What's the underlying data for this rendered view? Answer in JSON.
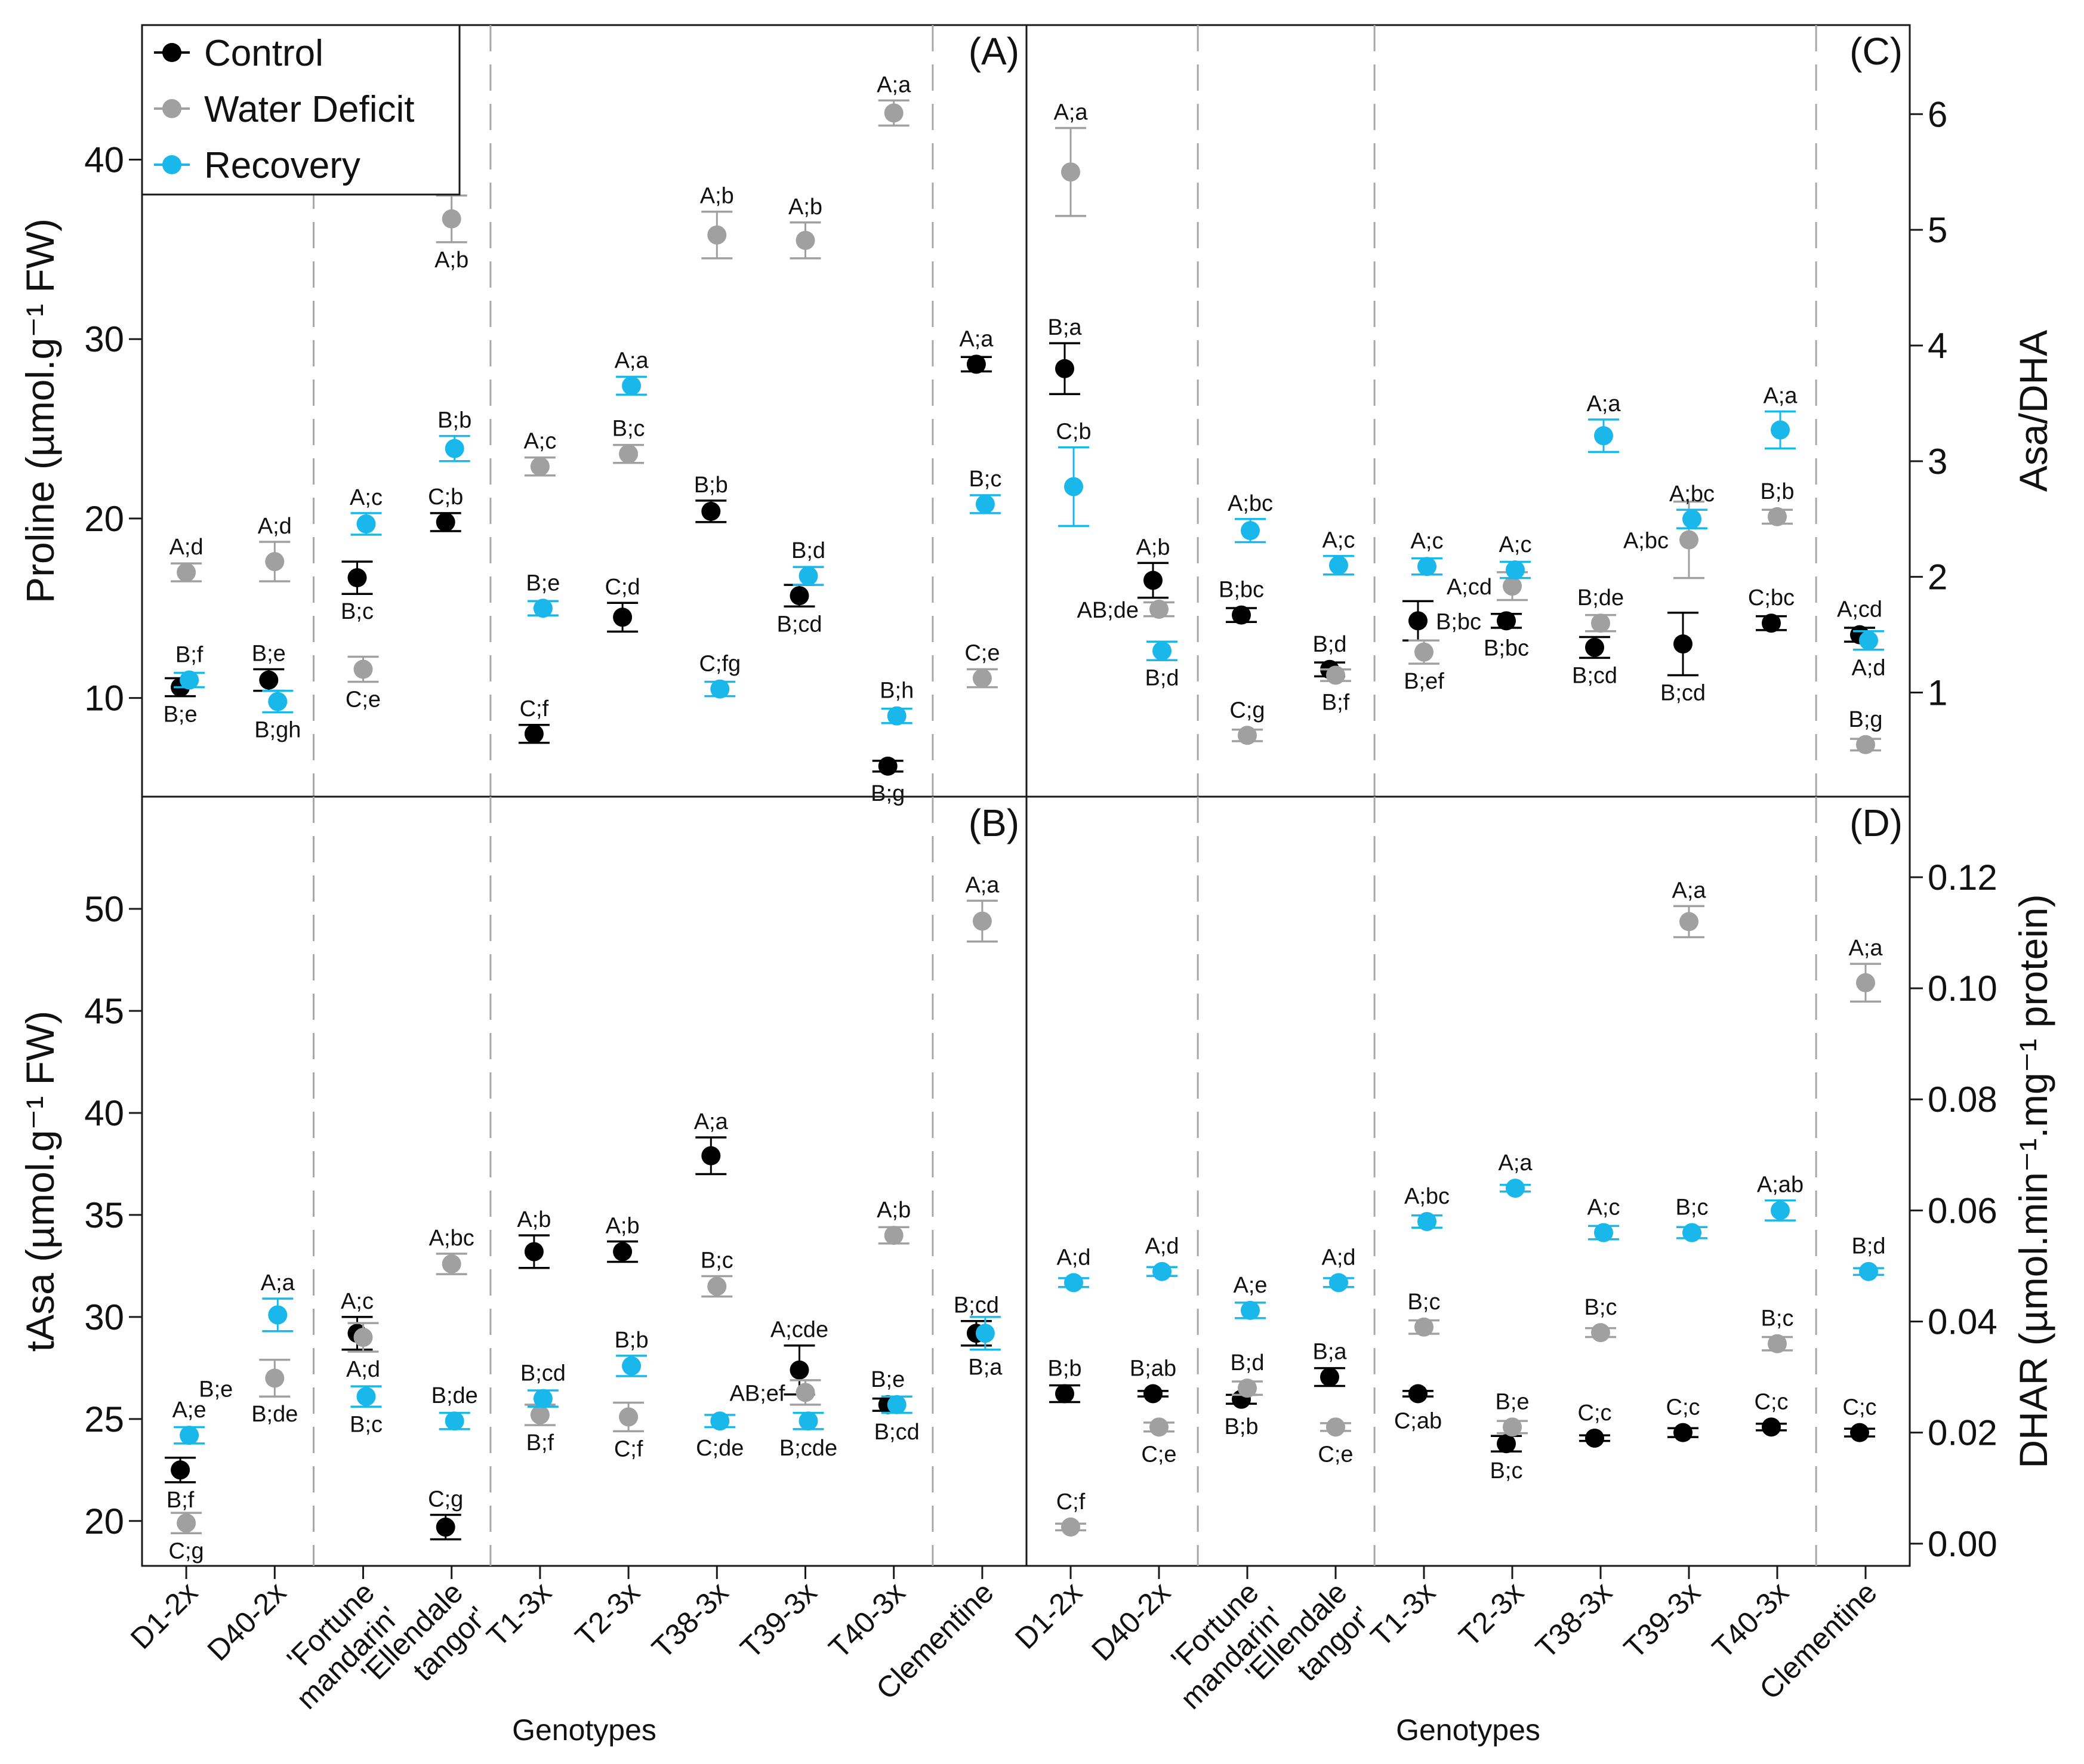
{
  "legend": [
    {
      "name": "Control",
      "color": "#000000"
    },
    {
      "name": "Water Deficit",
      "color": "#a0a0a0"
    },
    {
      "name": "Recovery",
      "color": "#1ab8ea"
    }
  ],
  "x_title": "Genotypes",
  "categories": [
    [
      "D1-2x"
    ],
    [
      "D40-2x"
    ],
    [
      "'Fortune",
      "mandarin'"
    ],
    [
      "'Ellendale",
      "tangor'"
    ],
    [
      "T1-3x"
    ],
    [
      "T2-3x"
    ],
    [
      "T38-3x"
    ],
    [
      "T39-3x"
    ],
    [
      "T40-3x"
    ],
    [
      "Clementine"
    ]
  ],
  "chart_data": [
    {
      "panel": "(A)",
      "type": "scatter",
      "ylabel": "Proline (µmol.g⁻¹ FW)",
      "yaxis_side": "left",
      "ylim": [
        4.5,
        47.5
      ],
      "yticks": [
        10,
        20,
        30,
        40
      ],
      "ytick_labels": [
        "10",
        "20",
        "30",
        "40"
      ],
      "series": [
        {
          "name": "Control",
          "values": [
            10.6,
            11.0,
            16.7,
            19.8,
            8.0,
            14.5,
            20.4,
            15.7,
            6.2,
            28.6
          ],
          "errors": [
            0.5,
            0.6,
            0.9,
            0.5,
            0.5,
            0.8,
            0.6,
            0.6,
            0.3,
            0.4
          ],
          "labels": [
            "B;e",
            "B;e",
            "B;c",
            "C;b",
            "C;f",
            "C;d",
            "B;b",
            "B;cd",
            "B;g",
            "A;a"
          ],
          "label_pos": [
            "below",
            "above",
            "below",
            "above",
            "above",
            "above",
            "above",
            "below",
            "below",
            "above"
          ]
        },
        {
          "name": "Water Deficit",
          "values": [
            17.0,
            17.6,
            11.6,
            36.7,
            22.9,
            23.6,
            35.8,
            35.5,
            42.6,
            11.1
          ],
          "errors": [
            0.5,
            1.1,
            0.7,
            1.3,
            0.5,
            0.5,
            1.3,
            1.0,
            0.7,
            0.5
          ],
          "labels": [
            "A;d",
            "A;d",
            "C;e",
            "A;b",
            "A;c",
            "B;c",
            "A;b",
            "A;b",
            "A;a",
            "C;e"
          ],
          "label_pos": [
            "above",
            "above",
            "below",
            "below",
            "above",
            "above",
            "above",
            "above",
            "above",
            "above"
          ]
        },
        {
          "name": "Recovery",
          "values": [
            11.0,
            9.8,
            19.7,
            23.9,
            15.0,
            27.4,
            10.5,
            16.8,
            9.0,
            20.8
          ],
          "errors": [
            0.4,
            0.6,
            0.6,
            0.7,
            0.4,
            0.5,
            0.4,
            0.5,
            0.4,
            0.5
          ],
          "labels": [
            "B;f",
            "B;gh",
            "A;c",
            "B;b",
            "B;e",
            "A;a",
            "C;fg",
            "B;d",
            "B;h",
            "B;c"
          ],
          "label_pos": [
            "above",
            "below",
            "above",
            "above",
            "above",
            "above",
            "above",
            "above",
            "above",
            "above"
          ]
        }
      ]
    },
    {
      "panel": "(B)",
      "type": "scatter",
      "ylabel": "tAsa (µmol.g⁻¹ FW)",
      "yaxis_side": "left",
      "ylim": [
        17.8,
        55.5
      ],
      "yticks": [
        20,
        25,
        30,
        35,
        40,
        45,
        50
      ],
      "ytick_labels": [
        "20",
        "25",
        "30",
        "35",
        "40",
        "45",
        "50"
      ],
      "series": [
        {
          "name": "Control",
          "values": [
            22.5,
            null,
            29.2,
            19.7,
            33.2,
            33.2,
            37.9,
            27.4,
            25.7,
            29.2
          ],
          "errors": [
            0.6,
            null,
            0.8,
            0.6,
            0.8,
            0.5,
            0.9,
            1.2,
            0.3,
            0.6
          ],
          "labels": [
            "B;f",
            "",
            "A;c",
            "C;g",
            "A;b",
            "A;b",
            "A;a",
            "A;cde",
            "B;e",
            "B;cd"
          ],
          "label_pos": [
            "below",
            "none",
            "above",
            "above",
            "above",
            "above",
            "above",
            "above",
            "above",
            "above"
          ]
        },
        {
          "name": "Water Deficit",
          "values": [
            19.9,
            27.0,
            29.0,
            32.6,
            25.2,
            25.1,
            31.5,
            26.3,
            34.0,
            49.4
          ],
          "errors": [
            0.5,
            0.9,
            0.7,
            0.5,
            0.5,
            0.7,
            0.5,
            0.6,
            0.4,
            1.0
          ],
          "labels": [
            "C;g",
            "B;de",
            "A;d",
            "A;bc",
            "B;f",
            "C;f",
            "B;c",
            "AB;ef",
            "A;b",
            "A;a"
          ],
          "label_pos": [
            "below",
            "below",
            "below",
            "above",
            "below",
            "below",
            "above",
            "left",
            "above",
            "above"
          ]
        },
        {
          "name": "Recovery",
          "values": [
            24.2,
            30.1,
            26.1,
            24.9,
            26.0,
            27.6,
            24.9,
            24.9,
            25.7,
            29.2
          ],
          "errors": [
            0.4,
            0.8,
            0.5,
            0.4,
            0.4,
            0.5,
            0.3,
            0.4,
            0.4,
            0.8
          ],
          "labels": [
            "A;e",
            "A;a",
            "B;c",
            "B;de",
            "B;cd",
            "B;b",
            "C;de",
            "B;cde",
            "B;cd",
            "B;a"
          ],
          "label_pos": [
            "above",
            "above",
            "below",
            "above",
            "above",
            "above",
            "below",
            "below",
            "below",
            "below"
          ]
        }
      ],
      "extra_labels": [
        {
          "text": "B;e",
          "category": "D40-2x"
        }
      ]
    },
    {
      "panel": "(C)",
      "type": "scatter",
      "ylabel": "Asa/DHA",
      "yaxis_side": "right",
      "ylim": [
        0.1,
        6.77
      ],
      "yticks": [
        1,
        2,
        3,
        4,
        5,
        6
      ],
      "ytick_labels": [
        "1",
        "2",
        "3",
        "4",
        "5",
        "6"
      ],
      "series": [
        {
          "name": "Control",
          "values": [
            3.8,
            1.97,
            1.67,
            1.2,
            1.62,
            1.62,
            1.39,
            1.42,
            1.6,
            1.5
          ],
          "errors": [
            0.22,
            0.15,
            0.06,
            0.06,
            0.17,
            0.06,
            0.09,
            0.27,
            0.06,
            0.06
          ],
          "labels": [
            "B;a",
            "A;b",
            "B;bc",
            "B;d",
            "B;bc",
            "B;bc",
            "B;cd",
            "B;cd",
            "C;bc",
            "A;cd"
          ],
          "label_pos": [
            "above",
            "above",
            "above",
            "above",
            "right",
            "below",
            "below",
            "below",
            "above",
            "above"
          ]
        },
        {
          "name": "Water Deficit",
          "values": [
            5.5,
            1.72,
            0.63,
            1.15,
            1.35,
            1.92,
            1.6,
            2.32,
            2.52,
            0.55
          ],
          "errors": [
            0.38,
            0.06,
            0.05,
            0.05,
            0.1,
            0.12,
            0.07,
            0.33,
            0.06,
            0.05
          ],
          "labels": [
            "A;a",
            "AB;de",
            "C;g",
            "B;f",
            "B;ef",
            "A;cd",
            "B;de",
            "A;bc",
            "B;b",
            "B;g"
          ],
          "label_pos": [
            "above",
            "left",
            "above",
            "below",
            "below",
            "left",
            "above",
            "left",
            "above",
            "above"
          ]
        },
        {
          "name": "Recovery",
          "values": [
            2.78,
            1.36,
            2.4,
            2.1,
            2.09,
            2.06,
            3.22,
            2.5,
            3.27,
            1.45
          ],
          "errors": [
            0.34,
            0.08,
            0.1,
            0.08,
            0.07,
            0.07,
            0.14,
            0.08,
            0.16,
            0.08
          ],
          "labels": [
            "C;b",
            "B;d",
            "A;bc",
            "A;c",
            "A;c",
            "A;c",
            "A;a",
            "A;bc",
            "A;a",
            "A;d"
          ],
          "label_pos": [
            "above",
            "below",
            "above",
            "above",
            "above",
            "above",
            "above",
            "above",
            "above",
            "below"
          ]
        }
      ]
    },
    {
      "panel": "(D)",
      "type": "scatter",
      "ylabel": "DHAR (µmol.min⁻¹.mg⁻¹ protein)",
      "yaxis_side": "right",
      "ylim": [
        -0.004,
        0.1345
      ],
      "yticks": [
        0.0,
        0.02,
        0.04,
        0.06,
        0.08,
        0.1,
        0.12
      ],
      "ytick_labels": [
        "0.00",
        "0.02",
        "0.04",
        "0.06",
        "0.08",
        "0.10",
        "0.12"
      ],
      "series": [
        {
          "name": "Control",
          "values": [
            0.027,
            0.027,
            0.026,
            0.03,
            0.027,
            0.018,
            0.019,
            0.02,
            0.021,
            0.02
          ],
          "errors": [
            0.0015,
            0.0005,
            0.0008,
            0.0016,
            0.0005,
            0.0014,
            0.0005,
            0.0008,
            0.0006,
            0.0007
          ],
          "labels": [
            "B;b",
            "B;ab",
            "B;b",
            "B;a",
            "C;ab",
            "B;c",
            "C;c",
            "C;c",
            "C;c",
            "C;c"
          ],
          "label_pos": [
            "above",
            "above",
            "below",
            "above",
            "below",
            "below",
            "above",
            "above",
            "above",
            "above"
          ]
        },
        {
          "name": "Water Deficit",
          "values": [
            0.003,
            0.021,
            0.028,
            0.021,
            0.039,
            0.021,
            0.038,
            0.112,
            0.036,
            0.101
          ],
          "errors": [
            0.0006,
            0.0008,
            0.0012,
            0.0007,
            0.0012,
            0.0011,
            0.0008,
            0.0028,
            0.0012,
            0.0034
          ],
          "labels": [
            "C;f",
            "C;e",
            "B;d",
            "C;e",
            "B;c",
            "B;e",
            "B;c",
            "A;a",
            "B;c",
            "A;a"
          ],
          "label_pos": [
            "above",
            "below",
            "above",
            "below",
            "above",
            "above",
            "above",
            "above",
            "above",
            "above"
          ]
        },
        {
          "name": "Recovery",
          "values": [
            0.047,
            0.049,
            0.042,
            0.047,
            0.058,
            0.064,
            0.056,
            0.056,
            0.06,
            0.049
          ],
          "errors": [
            0.0008,
            0.0008,
            0.0014,
            0.0008,
            0.0011,
            0.0006,
            0.0012,
            0.001,
            0.0018,
            0.0006
          ],
          "labels": [
            "A;d",
            "A;d",
            "A;e",
            "A;d",
            "A;bc",
            "A;a",
            "A;c",
            "B;c",
            "A;ab",
            "B;d"
          ],
          "label_pos": [
            "above",
            "above",
            "above",
            "above",
            "above",
            "above",
            "above",
            "above",
            "above",
            "above"
          ]
        }
      ]
    }
  ]
}
